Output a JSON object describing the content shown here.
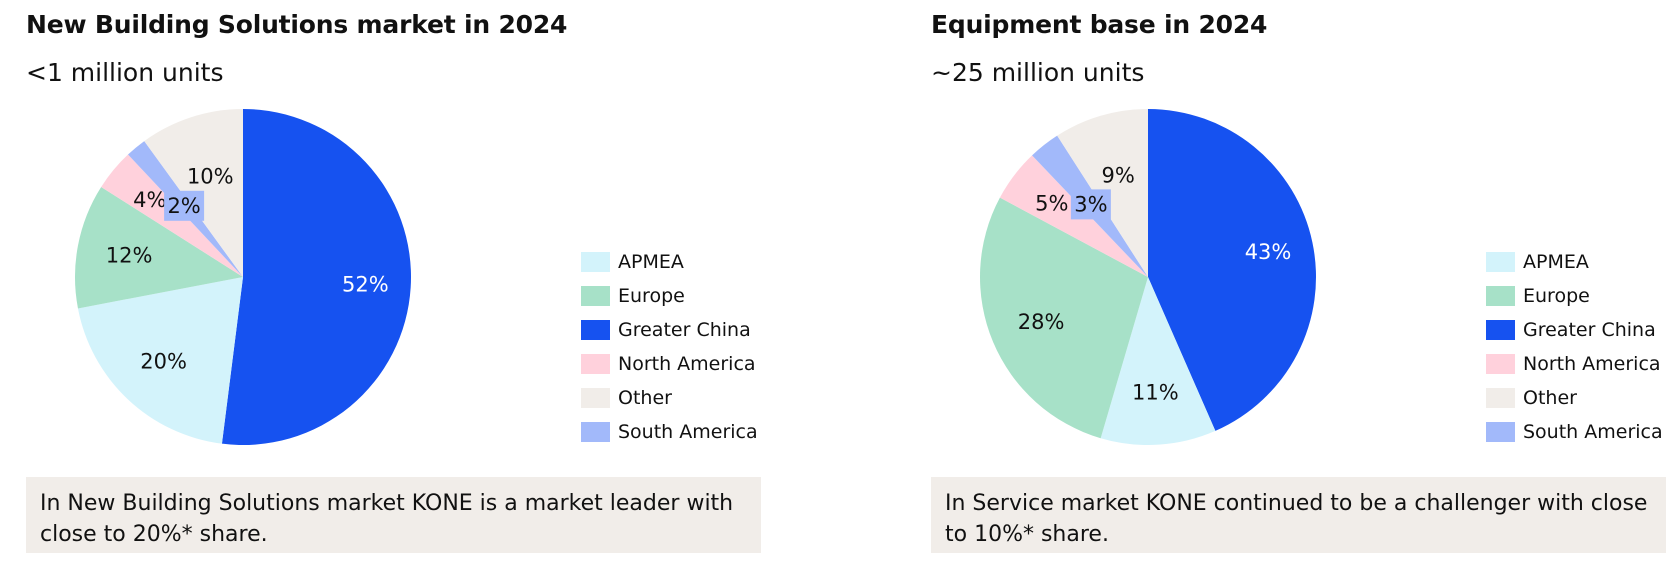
{
  "chart_data": [
    {
      "type": "pie",
      "title": "New Building Solutions market in 2024",
      "subtitle": "<1 million units",
      "slices": [
        {
          "name": "Greater China",
          "value": 52,
          "label": "52%",
          "color": "#1652f0",
          "label_color": "#ffffff"
        },
        {
          "name": "APMEA",
          "value": 20,
          "label": "20%",
          "color": "#d3f3fb",
          "label_color": "#111111"
        },
        {
          "name": "Europe",
          "value": 12,
          "label": "12%",
          "color": "#a7e1c8",
          "label_color": "#111111"
        },
        {
          "name": "North America",
          "value": 4,
          "label": "4%",
          "color": "#ffd1dc",
          "label_color": "#111111"
        },
        {
          "name": "South America",
          "value": 2,
          "label": "2%",
          "color": "#a2b9fa",
          "label_color": "#111111"
        },
        {
          "name": "Other",
          "value": 10,
          "label": "10%",
          "color": "#f1ede9",
          "label_color": "#111111"
        }
      ],
      "legend_placement": "right",
      "note": "In New Building Solutions market KONE is a market leader with close to 20%* share."
    },
    {
      "type": "pie",
      "title": "Equipment base in 2024",
      "subtitle": "~25 million units",
      "slices": [
        {
          "name": "Greater China",
          "value": 43,
          "label": "43%",
          "color": "#1652f0",
          "label_color": "#ffffff"
        },
        {
          "name": "APMEA",
          "value": 11,
          "label": "11%",
          "color": "#d3f3fb",
          "label_color": "#111111"
        },
        {
          "name": "Europe",
          "value": 28,
          "label": "28%",
          "color": "#a7e1c8",
          "label_color": "#111111"
        },
        {
          "name": "North America",
          "value": 5,
          "label": "5%",
          "color": "#ffd1dc",
          "label_color": "#111111"
        },
        {
          "name": "South America",
          "value": 3,
          "label": "3%",
          "color": "#a2b9fa",
          "label_color": "#111111"
        },
        {
          "name": "Other",
          "value": 9,
          "label": "9%",
          "color": "#f1ede9",
          "label_color": "#111111"
        }
      ],
      "legend_placement": "right",
      "note": "In Service market KONE continued to be a challenger with close to 10%* share."
    }
  ],
  "legend": [
    {
      "name": "APMEA",
      "color": "#d3f3fb"
    },
    {
      "name": "Europe",
      "color": "#a7e1c8"
    },
    {
      "name": "Greater China",
      "color": "#1652f0"
    },
    {
      "name": "North America",
      "color": "#ffd1dc"
    },
    {
      "name": "Other",
      "color": "#f1ede9"
    },
    {
      "name": "South America",
      "color": "#a2b9fa"
    }
  ]
}
